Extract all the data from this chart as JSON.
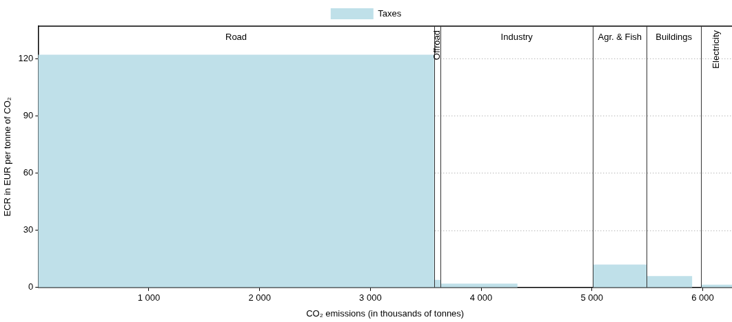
{
  "chart_data": {
    "type": "area",
    "xlabel": "CO₂ emissions (in thousands of tonnes)",
    "ylabel": "ECR in EUR per tonne of CO₂",
    "series": [
      {
        "name": "Taxes",
        "color": "#bfe0e9",
        "x": [
          0,
          3575,
          3633,
          4328,
          5010,
          5495,
          5905,
          5985,
          6265
        ],
        "values": [
          122,
          4,
          2,
          0,
          12,
          6,
          0,
          1.5,
          1.5
        ]
      }
    ],
    "xlim": [
      0,
      6265
    ],
    "xticks": [
      {
        "value": 1000,
        "label": "1 000"
      },
      {
        "value": 2000,
        "label": "2 000"
      },
      {
        "value": 3000,
        "label": "3 000"
      },
      {
        "value": 4000,
        "label": "4 000"
      },
      {
        "value": 5000,
        "label": "5 000"
      },
      {
        "value": 6000,
        "label": "6 000"
      }
    ],
    "ylim": [
      0,
      137
    ],
    "yticks": [
      0,
      30,
      60,
      90,
      120
    ],
    "ref_lines": [
      {
        "axis": "x",
        "value": 3575,
        "color": "#333333"
      },
      {
        "axis": "x",
        "value": 3633,
        "color": "#333333"
      },
      {
        "axis": "x",
        "value": 5010,
        "color": "#333333"
      },
      {
        "axis": "x",
        "value": 5495,
        "color": "#333333"
      },
      {
        "axis": "x",
        "value": 5985,
        "color": "#333333"
      }
    ],
    "annotations": [
      "Road",
      "Offroad",
      "Industry",
      "Agr. & Fish",
      "Buildings",
      "Electricity"
    ],
    "grid": "y",
    "legend": "top"
  }
}
